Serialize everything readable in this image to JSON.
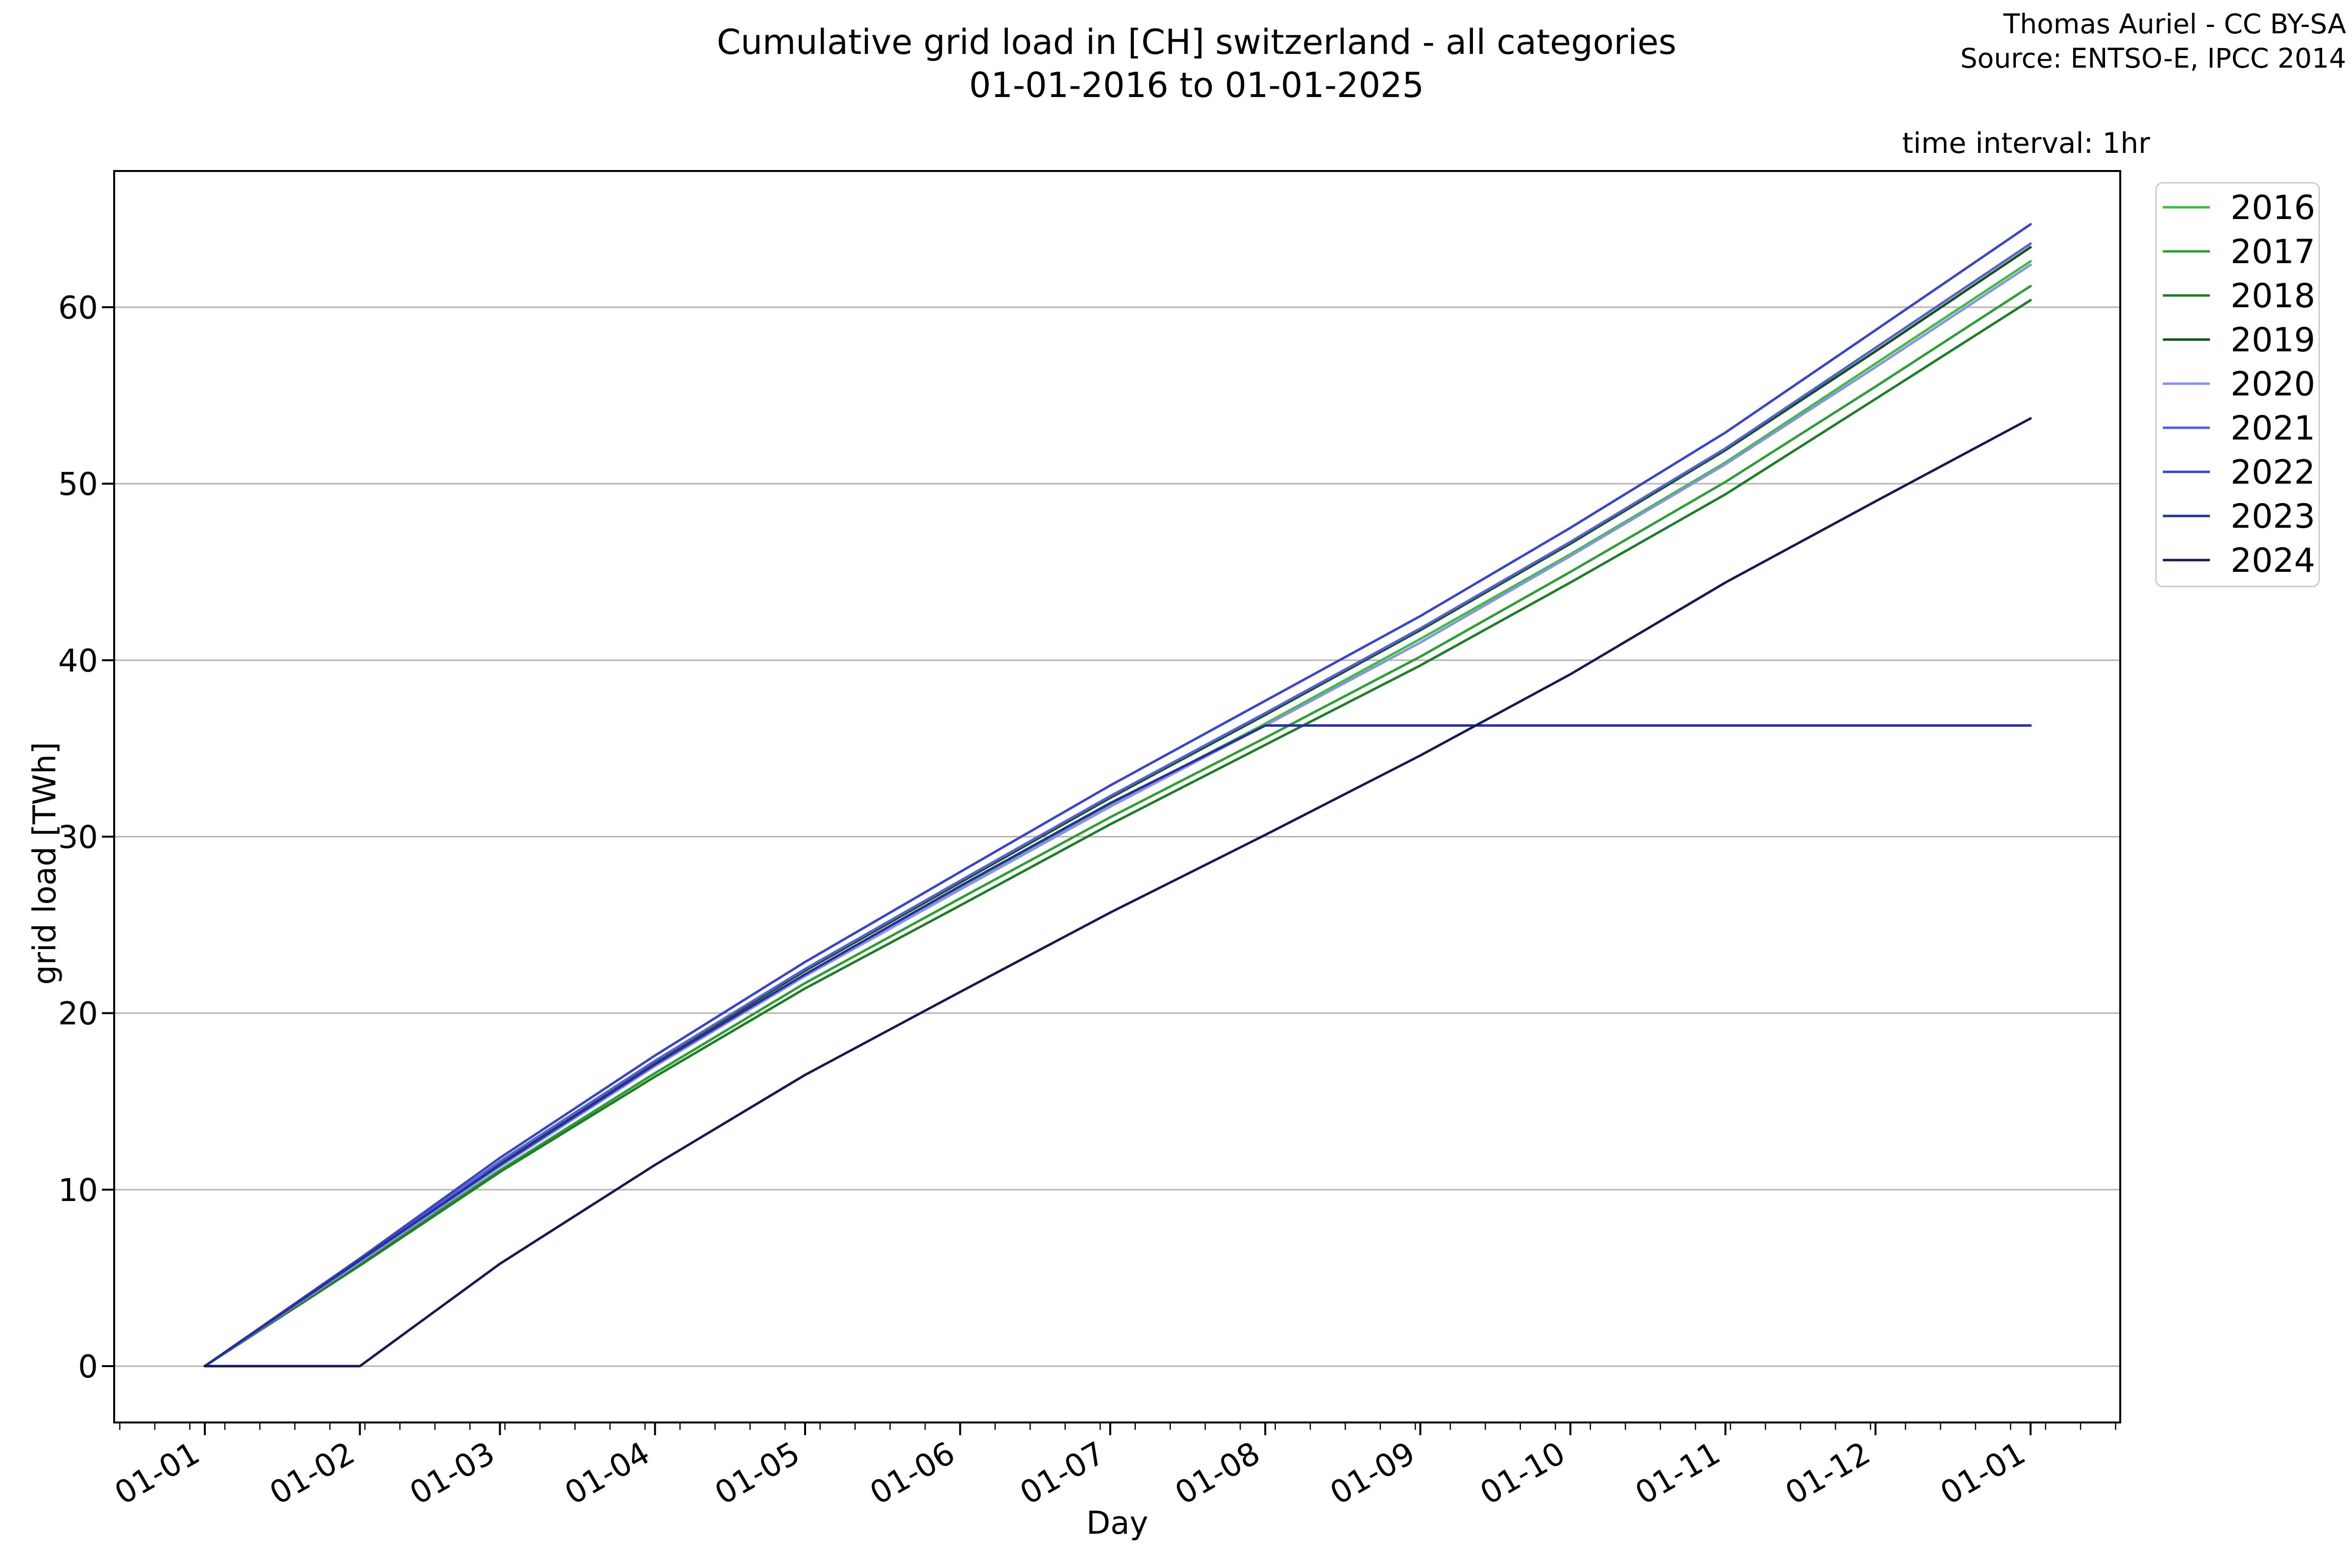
{
  "figure": {
    "title_line1": "Cumulative grid load in [CH] switzerland - all categories",
    "title_line2": "01-01-2016 to 01-01-2025",
    "attribution_line1": "Thomas Auriel - CC BY-SA",
    "attribution_line2": "Source: ENTSO-E, IPCC 2014",
    "note": "time interval: 1hr",
    "xlabel": "Day",
    "ylabel": "grid load [TWh]"
  },
  "chart_data": {
    "type": "line",
    "title": "Cumulative grid load in [CH] switzerland - all categories 01-01-2016 to 01-01-2025",
    "xlabel": "Day",
    "ylabel": "grid load [TWh]",
    "x_mode": "day-of-year, all years overlaid 01-01 to 01-01",
    "x_tick_labels": [
      "01-01",
      "01-02",
      "01-03",
      "01-04",
      "01-05",
      "01-06",
      "01-07",
      "01-08",
      "01-09",
      "01-10",
      "01-11",
      "01-12",
      "01-01"
    ],
    "x_tick_days": [
      0,
      31,
      59,
      90,
      120,
      151,
      181,
      212,
      243,
      273,
      304,
      334,
      365
    ],
    "y_ticks": [
      0,
      10,
      20,
      30,
      40,
      50,
      60
    ],
    "ylim": [
      -3.2,
      67.7
    ],
    "xlim_days": [
      -18,
      383
    ],
    "grid": "horizontal-only",
    "grid_color": "#b4b4b4",
    "axis_color": "#000000",
    "legend_position": "upper-right-outside",
    "minor_tick_interval_days": 7,
    "series": [
      {
        "name": "2016",
        "color": "#3fbc46",
        "end_value_TWh": 62.6,
        "monthly_cum": [
          0,
          5.9,
          11.4,
          17.0,
          22.1,
          27.1,
          31.8,
          36.4,
          41.2,
          46.0,
          51.2,
          56.8,
          62.6
        ]
      },
      {
        "name": "2017",
        "color": "#2e9e35",
        "end_value_TWh": 61.2,
        "monthly_cum": [
          0,
          5.8,
          11.1,
          16.6,
          21.7,
          26.5,
          31.1,
          35.6,
          40.2,
          45.0,
          50.1,
          55.5,
          61.2
        ]
      },
      {
        "name": "2018",
        "color": "#1f7d27",
        "end_value_TWh": 60.4,
        "monthly_cum": [
          0,
          5.7,
          11.0,
          16.4,
          21.4,
          26.1,
          30.7,
          35.2,
          39.7,
          44.4,
          49.4,
          54.8,
          60.4
        ]
      },
      {
        "name": "2019",
        "color": "#155218",
        "end_value_TWh": 63.4,
        "monthly_cum": [
          0,
          6.0,
          11.5,
          17.2,
          22.4,
          27.4,
          32.2,
          36.9,
          41.7,
          46.6,
          51.9,
          57.5,
          63.4
        ]
      },
      {
        "name": "2020",
        "color": "#8992e6",
        "end_value_TWh": 62.4,
        "monthly_cum": [
          0,
          5.9,
          11.3,
          17.0,
          22.1,
          27.0,
          31.7,
          36.3,
          41.0,
          45.9,
          51.1,
          56.6,
          62.4
        ]
      },
      {
        "name": "2021",
        "color": "#5560d6",
        "end_value_TWh": 63.6,
        "monthly_cum": [
          0,
          6.0,
          11.6,
          17.3,
          22.5,
          27.5,
          32.3,
          37.0,
          41.8,
          46.7,
          52.0,
          57.7,
          63.6
        ]
      },
      {
        "name": "2022",
        "color": "#3a46c4",
        "end_value_TWh": 64.7,
        "monthly_cum": [
          0,
          6.1,
          11.8,
          17.6,
          22.9,
          28.0,
          32.9,
          37.7,
          42.5,
          47.5,
          52.9,
          58.7,
          64.7
        ]
      },
      {
        "name": "2023",
        "color": "#282e9c",
        "end_value_TWh": 36.3,
        "note": "flat at 36.3 TWh from 01-08 onward (no further accumulation)",
        "monthly_cum": [
          0,
          6.0,
          11.4,
          17.1,
          22.2,
          27.2,
          31.9,
          36.3,
          36.3,
          36.3,
          36.3,
          36.3,
          36.3
        ]
      },
      {
        "name": "2024",
        "color": "#171a52",
        "end_value_TWh": 53.7,
        "note": "stays at 0 until 01-02, then accumulates",
        "monthly_cum": [
          0,
          0,
          5.8,
          11.4,
          16.5,
          21.2,
          25.7,
          30.1,
          34.6,
          39.2,
          44.4,
          49.0,
          53.7
        ]
      }
    ]
  }
}
